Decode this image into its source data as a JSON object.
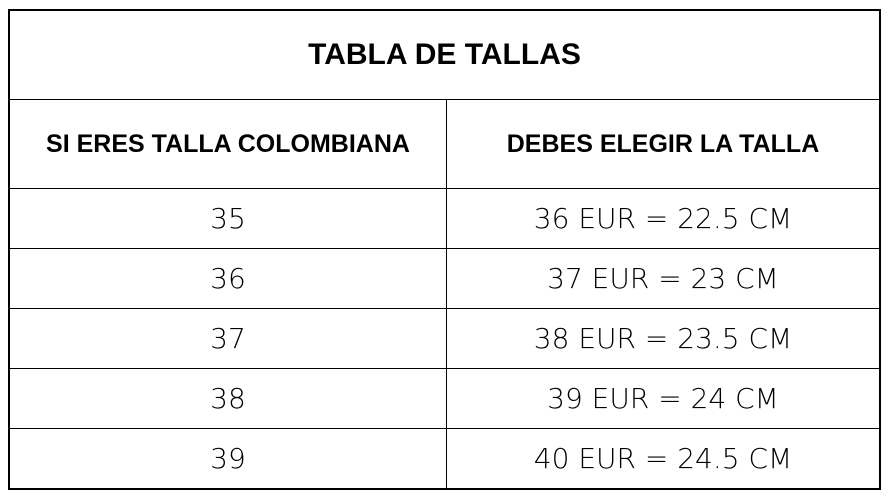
{
  "title": "TABLA DE TALLAS",
  "headers": [
    "SI ERES TALLA COLOMBIANA",
    "DEBES ELEGIR LA TALLA"
  ],
  "rows": [
    [
      "35",
      "36 EUR = 22.5 CM"
    ],
    [
      "36",
      "37 EUR = 23 CM"
    ],
    [
      "37",
      "38 EUR = 23.5 CM"
    ],
    [
      "38",
      "39 EUR = 24 CM"
    ],
    [
      "39",
      "40 EUR = 24.5 CM"
    ]
  ]
}
